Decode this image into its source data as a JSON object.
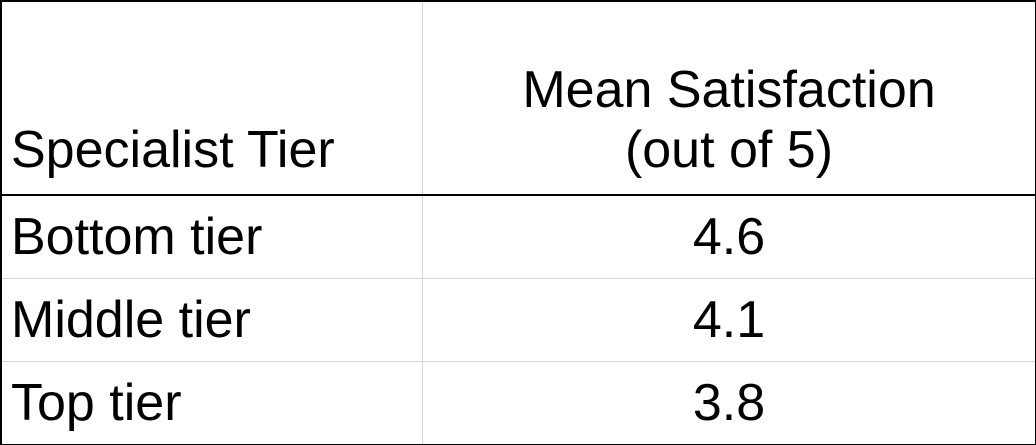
{
  "table": {
    "headers": {
      "tier": "Specialist Tier",
      "satisfaction_line1": "Mean Satisfaction",
      "satisfaction_line2": "(out of 5)"
    },
    "rows": [
      {
        "tier": "Bottom tier",
        "mean_satisfaction": "4.6"
      },
      {
        "tier": "Middle tier",
        "mean_satisfaction": "4.1"
      },
      {
        "tier": "Top tier",
        "mean_satisfaction": "3.8"
      }
    ]
  }
}
